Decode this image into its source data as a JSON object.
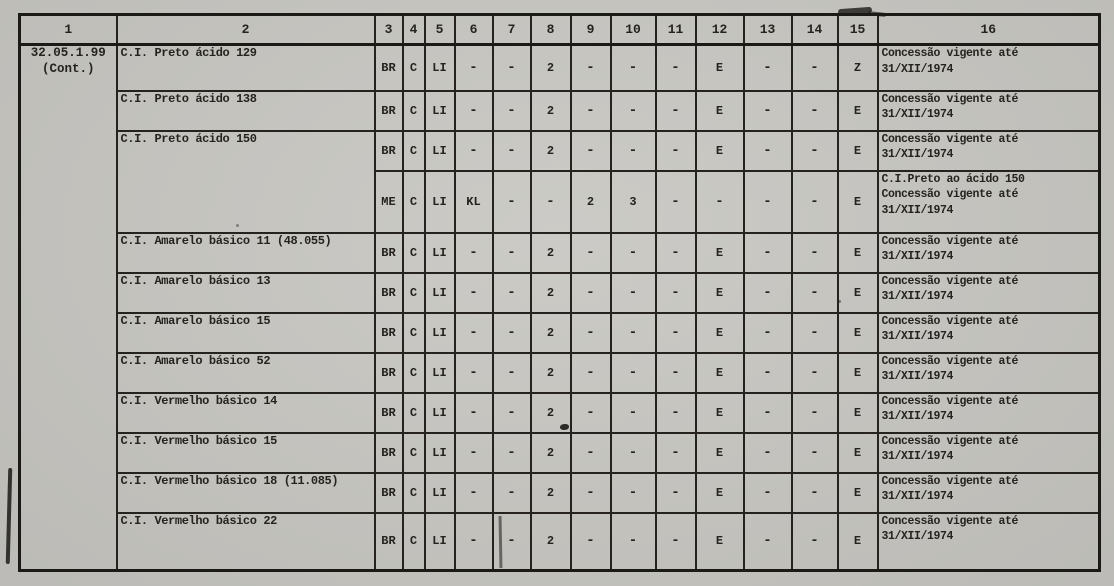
{
  "page": {
    "background_color": "#c8c7c2",
    "ink_color": "#26231e"
  },
  "table": {
    "columns": [
      "1",
      "2",
      "3",
      "4",
      "5",
      "6",
      "7",
      "8",
      "9",
      "10",
      "11",
      "12",
      "13",
      "14",
      "15",
      "16"
    ],
    "group_code": "32.05.1.99",
    "group_note": "(Cont.)",
    "rows": [
      {
        "name": "C.I. Preto ácido 129",
        "name_rowspan": 1,
        "cells": [
          "BR",
          "C",
          "LI",
          "-",
          "-",
          "2",
          "-",
          "-",
          "-",
          "E",
          "-",
          "-",
          "Z"
        ],
        "remark": "Concessão vigente até\n31/XII/1974"
      },
      {
        "name": "C.I. Preto ácido 138",
        "name_rowspan": 1,
        "cells": [
          "BR",
          "C",
          "LI",
          "-",
          "-",
          "2",
          "-",
          "-",
          "-",
          "E",
          "-",
          "-",
          "E"
        ],
        "remark": "Concessão vigente até\n31/XII/1974"
      },
      {
        "name": "C.I. Preto ácido 150",
        "name_rowspan": 2,
        "cells": [
          "BR",
          "C",
          "LI",
          "-",
          "-",
          "2",
          "-",
          "-",
          "-",
          "E",
          "-",
          "-",
          "E"
        ],
        "remark": "Concessão vigente até\n31/XII/1974"
      },
      {
        "name": "",
        "name_rowspan": 0,
        "cells": [
          "ME",
          "C",
          "LI",
          "KL",
          "-",
          "-",
          "2",
          "3",
          "-",
          "-",
          "-",
          "-",
          "E"
        ],
        "remark": "C.I.Preto ao ácido 150\nConcessão vigente até\n31/XII/1974"
      },
      {
        "name": "C.I. Amarelo básico 11 (48.055)",
        "name_rowspan": 1,
        "cells": [
          "BR",
          "C",
          "LI",
          "-",
          "-",
          "2",
          "-",
          "-",
          "-",
          "E",
          "-",
          "-",
          "E"
        ],
        "remark": "Concessão vigente até\n31/XII/1974"
      },
      {
        "name": "C.I. Amarelo básico 13",
        "name_rowspan": 1,
        "cells": [
          "BR",
          "C",
          "LI",
          "-",
          "-",
          "2",
          "-",
          "-",
          "-",
          "E",
          "-",
          "-",
          "E"
        ],
        "remark": "Concessão vigente até\n31/XII/1974"
      },
      {
        "name": "C.I. Amarelo básico 15",
        "name_rowspan": 1,
        "cells": [
          "BR",
          "C",
          "LI",
          "-",
          "-",
          "2",
          "-",
          "-",
          "-",
          "E",
          "-",
          "-",
          "E"
        ],
        "remark": "Concessão vigente até\n31/XII/1974"
      },
      {
        "name": "C.I. Amarelo básico 52",
        "name_rowspan": 1,
        "cells": [
          "BR",
          "C",
          "LI",
          "-",
          "-",
          "2",
          "-",
          "-",
          "-",
          "E",
          "-",
          "-",
          "E"
        ],
        "remark": "Concessão vigente até\n31/XII/1974"
      },
      {
        "name": "C.I. Vermelho básico 14",
        "name_rowspan": 1,
        "cells": [
          "BR",
          "C",
          "LI",
          "-",
          "-",
          "2",
          "-",
          "-",
          "-",
          "E",
          "-",
          "-",
          "E"
        ],
        "remark": "Concessão vigente até\n31/XII/1974"
      },
      {
        "name": "C.I. Vermelho básico 15",
        "name_rowspan": 1,
        "cells": [
          "BR",
          "C",
          "LI",
          "-",
          "-",
          "2",
          "-",
          "-",
          "-",
          "E",
          "-",
          "-",
          "E"
        ],
        "remark": "Concessão vigente até\n31/XII/1974"
      },
      {
        "name": "C.I. Vermelho básico 18 (11.085)",
        "name_rowspan": 1,
        "cells": [
          "BR",
          "C",
          "LI",
          "-",
          "-",
          "2",
          "-",
          "-",
          "-",
          "E",
          "-",
          "-",
          "E"
        ],
        "remark": "Concessão vigente até\n31/XII/1974"
      },
      {
        "name": "C.I. Vermelho básico 22",
        "name_rowspan": 1,
        "cells": [
          "BR",
          "C",
          "LI",
          "-",
          "-",
          "2",
          "-",
          "-",
          "-",
          "E",
          "-",
          "-",
          "E"
        ],
        "remark": "Concessão vigente até\n31/XII/1974"
      }
    ]
  }
}
